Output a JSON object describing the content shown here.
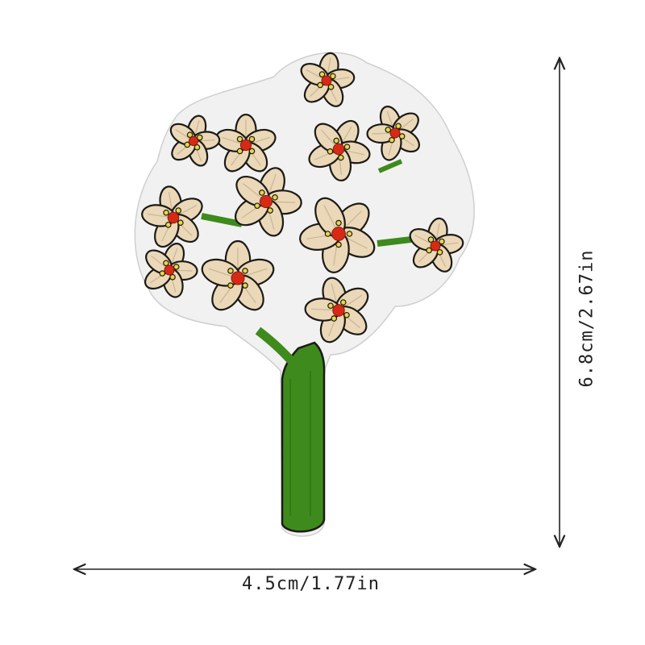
{
  "product": {
    "subject": "embroidered flower bouquet patch",
    "colors": {
      "petal": "#ead8b8",
      "outline": "#1c1a16",
      "stem": "#3e8a1c",
      "center": "#d62a16",
      "stamen": "#e6d64a",
      "backing": "#f1f1f1"
    }
  },
  "dimensions": {
    "width_label": "4.5cm/1.77in",
    "height_label": "6.8cm/2.67in"
  }
}
